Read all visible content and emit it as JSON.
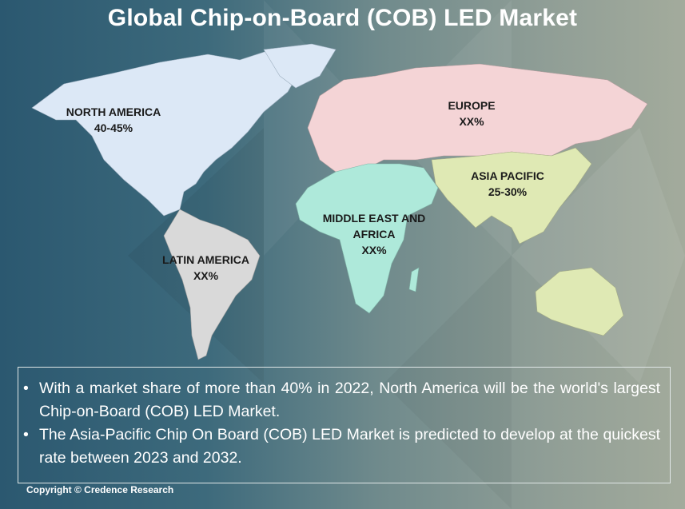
{
  "title": "Global Chip-on-Board (COB) LED Market",
  "regions": [
    {
      "name": "NORTH AMERICA",
      "share": "40-45%",
      "color": "#dce8f6"
    },
    {
      "name": "EUROPE",
      "share": "XX%",
      "color": "#f4d4d6"
    },
    {
      "name": "ASIA PACIFIC",
      "share": "25-30%",
      "color": "#dfe9b4"
    },
    {
      "name": "MIDDLE EAST AND AFRICA",
      "share": "XX%",
      "color": "#aee9da"
    },
    {
      "name": "LATIN AMERICA",
      "share": "XX%",
      "color": "#d9d9d9"
    }
  ],
  "bullets": [
    "With a market share of more than 40% in 2022, North America will be the world's largest Chip-on-Board (COB) LED Market.",
    "The Asia-Pacific Chip On Board (COB) LED Market is predicted to develop at the quickest rate between 2023 and 2032."
  ],
  "bullet_symbol": "•",
  "copyright": "Copyright © Credence Research"
}
